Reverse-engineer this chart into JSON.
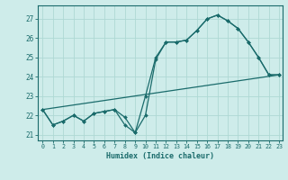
{
  "xlabel": "Humidex (Indice chaleur)",
  "ylabel": "",
  "xlim": [
    -0.5,
    23.3
  ],
  "ylim": [
    20.7,
    27.7
  ],
  "yticks": [
    21,
    22,
    23,
    24,
    25,
    26,
    27
  ],
  "xticks": [
    0,
    1,
    2,
    3,
    4,
    5,
    6,
    7,
    8,
    9,
    10,
    11,
    12,
    13,
    14,
    15,
    16,
    17,
    18,
    19,
    20,
    21,
    22,
    23
  ],
  "bg_color": "#ceecea",
  "grid_color": "#aed8d4",
  "line_color": "#1a6b6b",
  "series1_x": [
    0,
    1,
    2,
    3,
    4,
    5,
    6,
    7,
    8,
    9,
    10,
    11,
    12,
    13,
    14,
    15,
    16,
    17,
    18,
    19,
    20,
    21,
    22,
    23
  ],
  "series1_y": [
    22.3,
    21.5,
    21.7,
    22.0,
    21.7,
    22.1,
    22.2,
    22.3,
    21.5,
    21.1,
    22.0,
    24.9,
    25.8,
    25.8,
    25.9,
    26.4,
    27.0,
    27.2,
    26.9,
    26.5,
    25.8,
    25.0,
    24.1,
    24.1
  ],
  "series2_x": [
    0,
    1,
    2,
    3,
    4,
    5,
    6,
    7,
    8,
    9,
    10,
    11,
    12,
    13,
    14,
    15,
    16,
    17,
    18,
    19,
    20,
    21,
    22,
    23
  ],
  "series2_y": [
    22.3,
    21.5,
    21.7,
    22.0,
    21.7,
    22.1,
    22.2,
    22.3,
    21.9,
    21.1,
    23.0,
    25.0,
    25.8,
    25.8,
    25.9,
    26.4,
    27.0,
    27.2,
    26.9,
    26.5,
    25.8,
    25.0,
    24.1,
    24.1
  ],
  "series3_x": [
    0,
    23
  ],
  "series3_y": [
    22.3,
    24.1
  ]
}
